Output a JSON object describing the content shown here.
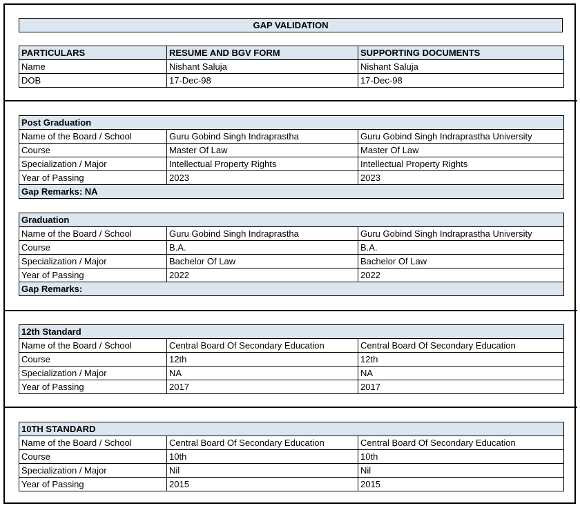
{
  "title": "GAP VALIDATION",
  "colors": {
    "header_fill": "#dce6f1",
    "border": "#000000"
  },
  "particulars": {
    "headers": [
      "PARTICULARS",
      "RESUME AND BGV FORM",
      "SUPPORTING DOCUMENTS"
    ],
    "rows": [
      [
        "Name",
        "Nishant Saluja",
        "Nishant Saluja"
      ],
      [
        "DOB",
        "17-Dec-98",
        "17-Dec-98"
      ]
    ]
  },
  "sections": [
    {
      "heading": "Post Graduation",
      "rows": [
        [
          "Name of the Board / School",
          "Guru Gobind Singh Indraprastha",
          "Guru Gobind Singh Indraprastha University"
        ],
        [
          "Course",
          "Master Of Law",
          "Master Of Law"
        ],
        [
          "Specialization / Major",
          "Intellectual Property Rights",
          "Intellectual Property Rights"
        ],
        [
          "Year of Passing",
          "2023",
          "2023"
        ]
      ],
      "remarks": "Gap Remarks: NA"
    },
    {
      "heading": "Graduation",
      "rows": [
        [
          "Name of the Board / School",
          "Guru Gobind Singh Indraprastha",
          "Guru Gobind Singh Indraprastha University"
        ],
        [
          "Course",
          "B.A.",
          "B.A."
        ],
        [
          "Specialization / Major",
          "Bachelor Of Law",
          "Bachelor Of Law"
        ],
        [
          "Year of Passing",
          "2022",
          "2022"
        ]
      ],
      "remarks": "Gap Remarks:"
    },
    {
      "heading": "12th Standard",
      "rows": [
        [
          "Name of the Board / School",
          "Central Board Of Secondary Education",
          "Central Board Of Secondary Education"
        ],
        [
          "Course",
          "12th",
          "12th"
        ],
        [
          "Specialization / Major",
          "NA",
          "NA"
        ],
        [
          "Year of Passing",
          "2017",
          "2017"
        ]
      ]
    },
    {
      "heading": "10TH STANDARD",
      "rows": [
        [
          "Name of the Board / School",
          "Central Board Of Secondary Education",
          "Central Board Of Secondary Education"
        ],
        [
          "Course",
          "10th",
          "10th"
        ],
        [
          "Specialization / Major",
          "Nil",
          "Nil"
        ],
        [
          "Year of Passing",
          "2015",
          "2015"
        ]
      ]
    }
  ]
}
